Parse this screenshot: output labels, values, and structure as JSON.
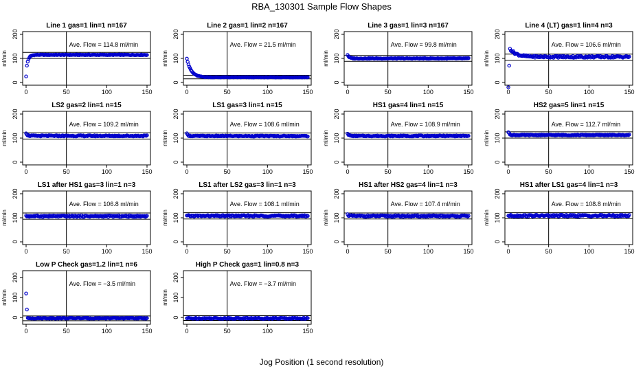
{
  "figure": {
    "title": "RBA_130301  Sample Flow Shapes",
    "xlabel": "Jog Position (1 second resolution)",
    "point_color": "#0000cc",
    "ave_prefix": "Ave. Flow = ",
    "ave_unit": " ml/min"
  },
  "chart_data": [
    {
      "type": "scatter",
      "title": "Line 1 gas=1 lin=1 n=167",
      "ylabel": "ml/min",
      "xlim": [
        0,
        150
      ],
      "ylim": [
        0,
        200
      ],
      "xticks": [
        0,
        50,
        100,
        150
      ],
      "yticks": [
        0,
        100,
        200
      ],
      "ave_flow": "114.8",
      "ref_lines": [
        100,
        125
      ],
      "vline": 50,
      "shape": {
        "kind": "rise",
        "start": 25,
        "mid": 70,
        "level": 114.8,
        "ramp": 10,
        "noise": 1.5
      }
    },
    {
      "type": "scatter",
      "title": "Line 2 gas=1 lin=2 n=167",
      "ylabel": "ml/min",
      "xlim": [
        0,
        150
      ],
      "ylim": [
        0,
        200
      ],
      "xticks": [
        0,
        50,
        100,
        150
      ],
      "yticks": [
        0,
        100,
        200
      ],
      "ave_flow": "21.5",
      "ref_lines": [
        15,
        30
      ],
      "vline": 50,
      "shape": {
        "kind": "decay",
        "start": 100,
        "level": 21.5,
        "ramp": 16,
        "noise": 1
      }
    },
    {
      "type": "scatter",
      "title": "Line 3 gas=1 lin=3 n=167",
      "ylabel": "ml/min",
      "xlim": [
        0,
        150
      ],
      "ylim": [
        0,
        200
      ],
      "xticks": [
        0,
        50,
        100,
        150
      ],
      "yticks": [
        0,
        100,
        200
      ],
      "ave_flow": "99.8",
      "ref_lines": [
        88,
        112
      ],
      "vline": 50,
      "shape": {
        "kind": "decay",
        "start": 115,
        "level": 99.8,
        "ramp": 6,
        "noise": 1.5
      }
    },
    {
      "type": "scatter",
      "title": "Line 4 (LT) gas=1 lin=4 n=3",
      "ylabel": "ml/min",
      "xlim": [
        0,
        150
      ],
      "ylim": [
        0,
        200
      ],
      "xticks": [
        0,
        50,
        100,
        150
      ],
      "yticks": [
        0,
        100,
        200
      ],
      "ave_flow": "106.6",
      "ref_lines": [
        92,
        118
      ],
      "vline": 50,
      "shape": {
        "kind": "lt",
        "start": -20,
        "mid": 70,
        "peak": 140,
        "level": 106.6,
        "ramp": 20,
        "noise": 4
      }
    },
    {
      "type": "scatter",
      "title": "LS2 gas=2 lin=1 n=15",
      "ylabel": "ml/min",
      "xlim": [
        0,
        150
      ],
      "ylim": [
        0,
        200
      ],
      "xticks": [
        0,
        50,
        100,
        150
      ],
      "yticks": [
        0,
        100,
        200
      ],
      "ave_flow": "109.2",
      "ref_lines": [
        96,
        122
      ],
      "vline": 50,
      "shape": {
        "kind": "spike",
        "start": 122,
        "level": 109.2,
        "ramp": 4,
        "noise": 2.5
      }
    },
    {
      "type": "scatter",
      "title": "LS1 gas=3 lin=1 n=15",
      "ylabel": "ml/min",
      "xlim": [
        0,
        150
      ],
      "ylim": [
        0,
        200
      ],
      "xticks": [
        0,
        50,
        100,
        150
      ],
      "yticks": [
        0,
        100,
        200
      ],
      "ave_flow": "108.6",
      "ref_lines": [
        96,
        121
      ],
      "vline": 50,
      "shape": {
        "kind": "spike",
        "start": 118,
        "level": 108.6,
        "ramp": 4,
        "noise": 2
      }
    },
    {
      "type": "scatter",
      "title": "HS1 gas=4 lin=1 n=15",
      "ylabel": "ml/min",
      "xlim": [
        0,
        150
      ],
      "ylim": [
        0,
        200
      ],
      "xticks": [
        0,
        50,
        100,
        150
      ],
      "yticks": [
        0,
        100,
        200
      ],
      "ave_flow": "108.9",
      "ref_lines": [
        96,
        121
      ],
      "vline": 50,
      "shape": {
        "kind": "spike",
        "start": 120,
        "level": 108.9,
        "ramp": 4,
        "noise": 2
      }
    },
    {
      "type": "scatter",
      "title": "HS2 gas=5 lin=1 n=15",
      "ylabel": "ml/min",
      "xlim": [
        0,
        150
      ],
      "ylim": [
        0,
        200
      ],
      "xticks": [
        0,
        50,
        100,
        150
      ],
      "yticks": [
        0,
        100,
        200
      ],
      "ave_flow": "112.7",
      "ref_lines": [
        100,
        126
      ],
      "vline": 50,
      "shape": {
        "kind": "spike",
        "start": 125,
        "level": 112.7,
        "ramp": 4,
        "noise": 2
      }
    },
    {
      "type": "scatter",
      "title": "LS1 after HS1 gas=3 lin=1 n=3",
      "ylabel": "ml/min",
      "xlim": [
        0,
        150
      ],
      "ylim": [
        0,
        200
      ],
      "xticks": [
        0,
        50,
        100,
        150
      ],
      "yticks": [
        0,
        100,
        200
      ],
      "ave_flow": "106.8",
      "ref_lines": [
        94,
        120
      ],
      "vline": 50,
      "shape": {
        "kind": "flat",
        "start": 106.8,
        "level": 106.8,
        "ramp": 1,
        "noise": 3
      }
    },
    {
      "type": "scatter",
      "title": "LS1 after LS2 gas=3 lin=1 n=3",
      "ylabel": "ml/min",
      "xlim": [
        0,
        150
      ],
      "ylim": [
        0,
        200
      ],
      "xticks": [
        0,
        50,
        100,
        150
      ],
      "yticks": [
        0,
        100,
        200
      ],
      "ave_flow": "108.1",
      "ref_lines": [
        95,
        121
      ],
      "vline": 50,
      "shape": {
        "kind": "flat",
        "start": 108.1,
        "level": 108.1,
        "ramp": 1,
        "noise": 3
      }
    },
    {
      "type": "scatter",
      "title": "HS1 after HS2 gas=4 lin=1 n=3",
      "ylabel": "ml/min",
      "xlim": [
        0,
        150
      ],
      "ylim": [
        0,
        200
      ],
      "xticks": [
        0,
        50,
        100,
        150
      ],
      "yticks": [
        0,
        100,
        200
      ],
      "ave_flow": "107.4",
      "ref_lines": [
        95,
        120
      ],
      "vline": 50,
      "shape": {
        "kind": "flat",
        "start": 113,
        "level": 107.4,
        "ramp": 3,
        "noise": 3
      }
    },
    {
      "type": "scatter",
      "title": "HS1 after LS1 gas=4 lin=1 n=3",
      "ylabel": "ml/min",
      "xlim": [
        0,
        150
      ],
      "ylim": [
        0,
        200
      ],
      "xticks": [
        0,
        50,
        100,
        150
      ],
      "yticks": [
        0,
        100,
        200
      ],
      "ave_flow": "108.8",
      "ref_lines": [
        96,
        121
      ],
      "vline": 50,
      "shape": {
        "kind": "flat",
        "start": 108.8,
        "level": 108.8,
        "ramp": 1,
        "noise": 3.5
      }
    },
    {
      "type": "scatter",
      "title": "Low P Check gas=1.2 lin=1 n=6",
      "ylabel": "ml/min",
      "xlim": [
        0,
        150
      ],
      "ylim": [
        -20,
        220
      ],
      "xticks": [
        0,
        50,
        100,
        150
      ],
      "yticks": [
        0,
        100,
        200
      ],
      "ave_flow": "−3.5",
      "ref_lines": [
        -16,
        8
      ],
      "vline": 50,
      "shape": {
        "kind": "lowp",
        "start": 120,
        "mid": 40,
        "level": -3.5,
        "ramp": 2,
        "noise": 2
      }
    },
    {
      "type": "scatter",
      "title": "High P Check gas=1 lin=0.8 n=3",
      "ylabel": "ml/min",
      "xlim": [
        0,
        150
      ],
      "ylim": [
        -20,
        220
      ],
      "xticks": [
        0,
        50,
        100,
        150
      ],
      "yticks": [
        0,
        100,
        200
      ],
      "ave_flow": "−3.7",
      "ref_lines": [
        -15,
        9
      ],
      "vline": 50,
      "shape": {
        "kind": "flat",
        "start": -3.7,
        "level": -3.7,
        "ramp": 1,
        "noise": 3
      }
    }
  ]
}
